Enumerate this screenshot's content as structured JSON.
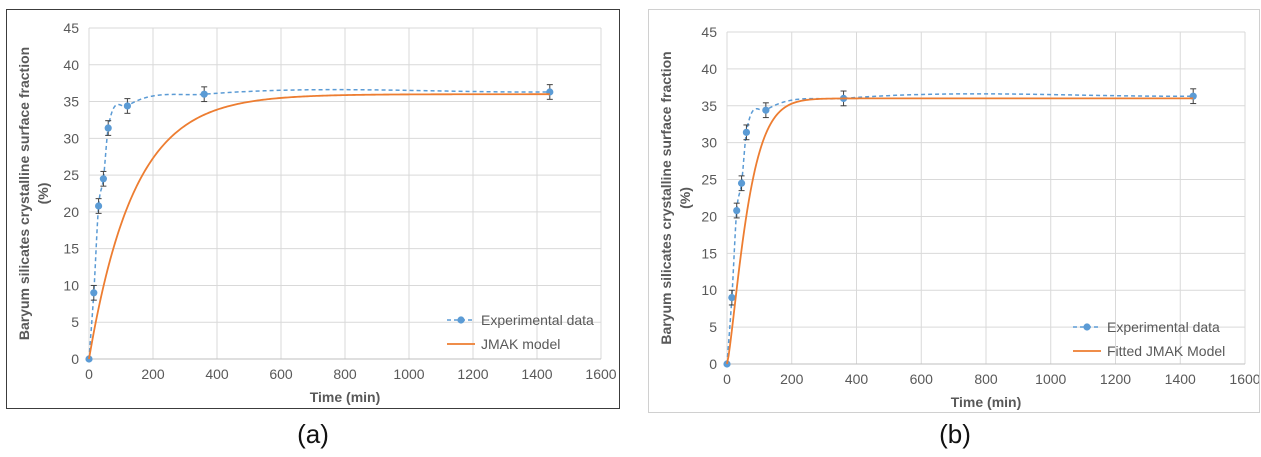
{
  "chart_data": [
    {
      "type": "scatter",
      "panel_label": "(a)",
      "xlabel": "Time (min)",
      "ylabel_lines": [
        "Baryum silicates crystalline surface fraction",
        "(%)"
      ],
      "xlim": [
        0,
        1600
      ],
      "ylim": [
        0,
        45
      ],
      "xticks": [
        0,
        200,
        400,
        600,
        800,
        1000,
        1200,
        1400,
        1600
      ],
      "yticks": [
        0,
        5,
        10,
        15,
        20,
        25,
        30,
        35,
        40,
        45
      ],
      "grid": true,
      "legend_position": "bottom-right",
      "series": [
        {
          "name": "Experimental data",
          "style": "markers-dashed",
          "color": "#5b9bd5",
          "x": [
            0,
            15,
            30,
            45,
            60,
            120,
            360,
            1440
          ],
          "y": [
            0,
            9.0,
            20.8,
            24.5,
            31.4,
            34.4,
            36.0,
            36.3
          ],
          "error": [
            0,
            1.0,
            1.0,
            1.0,
            1.0,
            1.0,
            1.0,
            1.0
          ]
        },
        {
          "name": "JMAK model",
          "style": "line",
          "color": "#ed7d31",
          "model": {
            "plateau": 36.0,
            "k": 0.0071,
            "n": 1.0
          },
          "x_range": [
            0,
            1440
          ]
        }
      ]
    },
    {
      "type": "scatter",
      "panel_label": "(b)",
      "xlabel": "Time (min)",
      "ylabel_lines": [
        "Baryum silicates crystalline surface fraction",
        "(%)"
      ],
      "xlim": [
        0,
        1600
      ],
      "ylim": [
        0,
        45
      ],
      "xticks": [
        0,
        200,
        400,
        600,
        800,
        1000,
        1200,
        1400,
        1600
      ],
      "yticks": [
        0,
        5,
        10,
        15,
        20,
        25,
        30,
        35,
        40,
        45
      ],
      "grid": true,
      "legend_position": "bottom-right",
      "series": [
        {
          "name": "Experimental data",
          "style": "markers-dashed",
          "color": "#5b9bd5",
          "x": [
            0,
            15,
            30,
            45,
            60,
            120,
            360,
            1440
          ],
          "y": [
            0,
            9.0,
            20.8,
            24.5,
            31.4,
            34.4,
            36.0,
            36.3
          ],
          "error": [
            0,
            1.0,
            1.0,
            1.0,
            1.0,
            1.0,
            1.0,
            1.0
          ]
        },
        {
          "name": "Fitted JMAK Model",
          "style": "line",
          "color": "#ed7d31",
          "model": {
            "plateau": 36.0,
            "k": 0.0143,
            "n": 1.3
          },
          "x_range": [
            0,
            1440
          ]
        }
      ]
    }
  ]
}
